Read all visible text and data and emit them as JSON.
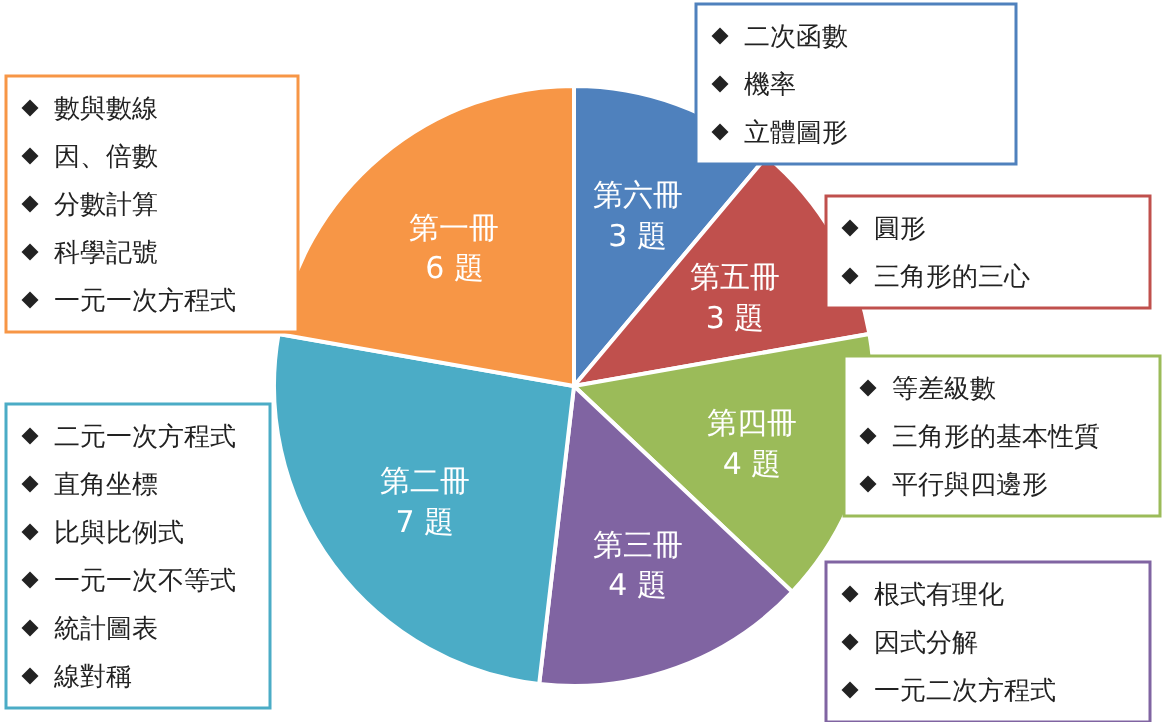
{
  "chart_data": {
    "type": "pie",
    "categories": [
      "第六冊",
      "第五冊",
      "第四冊",
      "第三冊",
      "第二冊",
      "第一冊"
    ],
    "values": [
      3,
      3,
      4,
      4,
      7,
      6
    ],
    "value_labels": [
      "3 題",
      "3 題",
      "4 題",
      "4 題",
      "7 題",
      "6 題"
    ],
    "colors": [
      "#4f81bd",
      "#c0504d",
      "#9bbb59",
      "#8064a2",
      "#4bacc6",
      "#f79646"
    ],
    "annotations": [
      "二次函數",
      "機率",
      "立體圖形",
      "圓形",
      "三角形的三心",
      "等差級數",
      "三角形的基本性質",
      "平行與四邊形",
      "根式有理化",
      "因式分解",
      "一元二次方程式",
      "二元一次方程式",
      "直角坐標",
      "比與比例式",
      "一元一次不等式",
      "統計圖表",
      "線對稱",
      "數與數線",
      "因、倍數",
      "分數計算",
      "科學記號",
      "一元一次方程式"
    ]
  }
}
